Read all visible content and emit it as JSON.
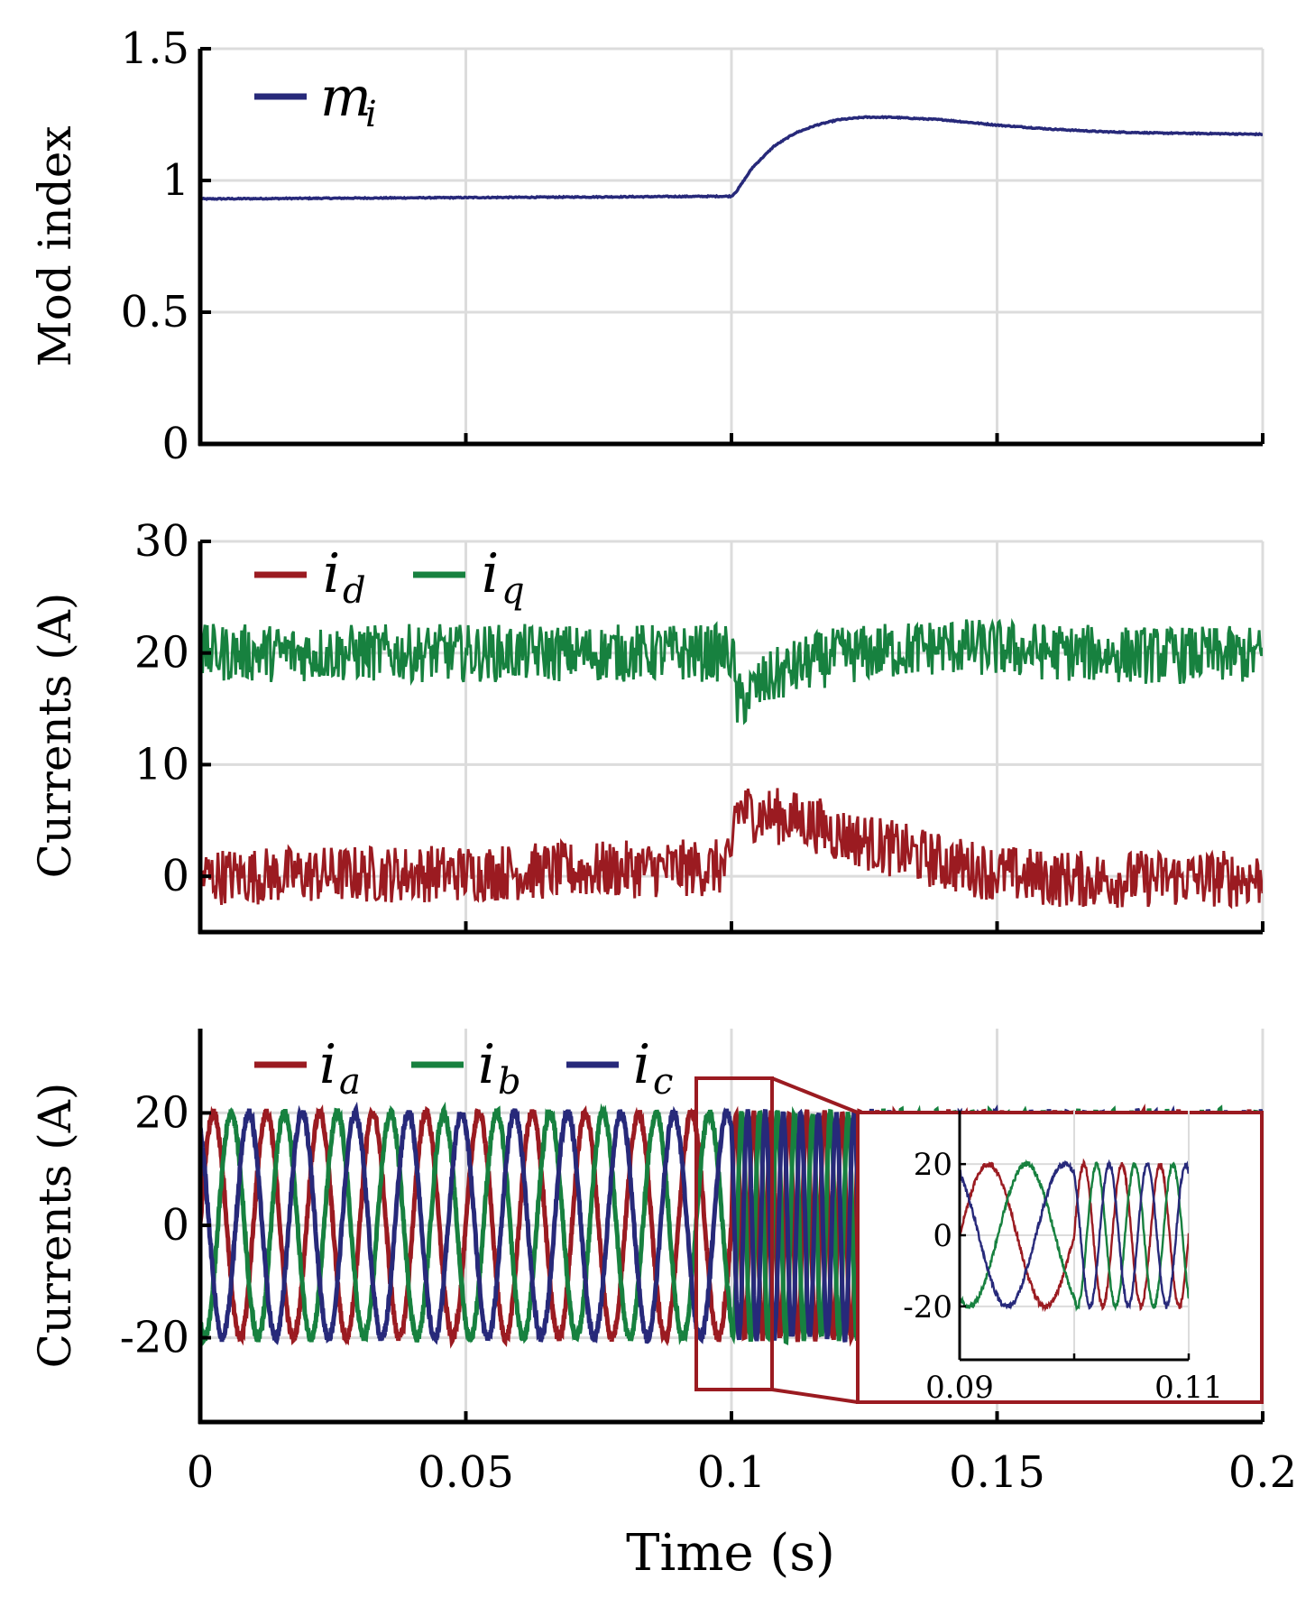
{
  "chart_data": [
    {
      "type": "line",
      "ylabel": "Mod index",
      "xlim": [
        0,
        0.2
      ],
      "ylim": [
        0,
        1.5
      ],
      "x_ticks": [
        "0",
        "0.05",
        "0.1",
        "0.15",
        "0.2"
      ],
      "y_ticks": [
        "0",
        "0.5",
        "1",
        "1.5"
      ],
      "grid": true,
      "legend_position": "top-left",
      "series": [
        {
          "name": "m_i",
          "color": "#27297a",
          "x": [
            0,
            0.05,
            0.1,
            0.101,
            0.104,
            0.108,
            0.112,
            0.116,
            0.12,
            0.125,
            0.13,
            0.14,
            0.15,
            0.16,
            0.17,
            0.18,
            0.19,
            0.2
          ],
          "y": [
            0.93,
            0.935,
            0.94,
            0.96,
            1.05,
            1.13,
            1.18,
            1.21,
            1.23,
            1.24,
            1.24,
            1.23,
            1.21,
            1.195,
            1.185,
            1.18,
            1.178,
            1.175
          ]
        }
      ]
    },
    {
      "type": "line",
      "ylabel": "Currents (A)",
      "xlim": [
        0,
        0.2
      ],
      "ylim": [
        -5,
        30
      ],
      "x_ticks": [
        "0",
        "0.05",
        "0.1",
        "0.15",
        "0.2"
      ],
      "y_ticks": [
        "0",
        "10",
        "20",
        "30"
      ],
      "grid": true,
      "legend_position": "top-left",
      "series": [
        {
          "name": "i_d",
          "color": "#9b1b21",
          "x": [
            0,
            0.05,
            0.1,
            0.1005,
            0.105,
            0.11,
            0.115,
            0.12,
            0.13,
            0.14,
            0.15,
            0.16,
            0.17,
            0.18,
            0.19,
            0.2
          ],
          "y": [
            0,
            0.3,
            0.8,
            6.0,
            5.6,
            5.3,
            4.8,
            3.8,
            2.5,
            1.2,
            0.3,
            -0.2,
            -0.3,
            -0.2,
            -0.2,
            -0.2
          ]
        },
        {
          "name": "i_q",
          "color": "#17813f",
          "x": [
            0,
            0.05,
            0.1,
            0.1005,
            0.101,
            0.103,
            0.106,
            0.11,
            0.115,
            0.12,
            0.13,
            0.14,
            0.15,
            0.16,
            0.17,
            0.18,
            0.19,
            0.2
          ],
          "y": [
            20,
            20,
            20,
            18.5,
            15.5,
            16.2,
            17.3,
            18.3,
            19.2,
            19.7,
            20.2,
            20.6,
            20.4,
            20.1,
            19.9,
            19.8,
            19.8,
            19.8
          ]
        }
      ]
    },
    {
      "type": "line",
      "ylabel": "Currents (A)",
      "xlabel": "Time (s)",
      "xlim": [
        0,
        0.2
      ],
      "ylim": [
        -35,
        35
      ],
      "x_ticks": [
        "0",
        "0.05",
        "0.1",
        "0.15",
        "0.2"
      ],
      "y_ticks": [
        "-20",
        "0",
        "20"
      ],
      "grid": true,
      "legend_position": "top-left",
      "series": [
        {
          "name": "i_a",
          "color": "#9b1b21",
          "amplitude": 20,
          "frequency_hz": [
            100,
            300
          ],
          "phase_deg": 0
        },
        {
          "name": "i_b",
          "color": "#17813f",
          "amplitude": 20,
          "frequency_hz": [
            100,
            300
          ],
          "phase_deg": -120
        },
        {
          "name": "i_c",
          "color": "#27297a",
          "amplitude": 20,
          "frequency_hz": [
            100,
            300
          ],
          "phase_deg": 120
        }
      ],
      "frequency_step_time": 0.1,
      "inset": {
        "xlim": [
          0.09,
          0.11
        ],
        "ylim": [
          -35,
          35
        ],
        "x_ticks": [
          "0.09",
          "0.11"
        ],
        "y_ticks": [
          "-20",
          "0",
          "20"
        ],
        "grid": true,
        "frame_color": "#9b1b21"
      }
    }
  ]
}
